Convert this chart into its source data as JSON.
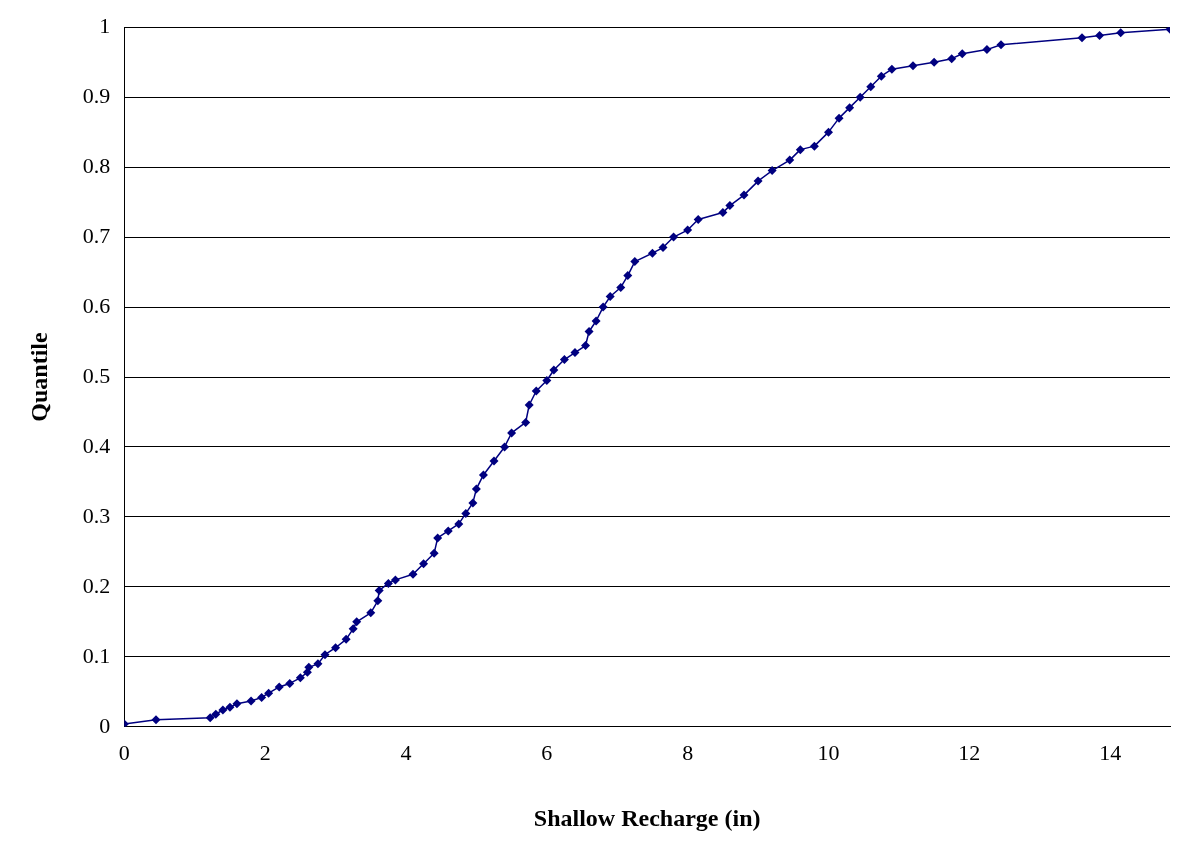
{
  "chart_data": {
    "type": "line",
    "xlabel": "Shallow Recharge (in)",
    "ylabel": "Quantile",
    "xlim": [
      0,
      14.85
    ],
    "xticks": [
      0,
      2,
      4,
      6,
      8,
      10,
      12,
      14
    ],
    "ylim": [
      0,
      1
    ],
    "yticks": [
      0,
      0.1,
      0.2,
      0.3,
      0.4,
      0.5,
      0.6,
      0.7,
      0.8,
      0.9,
      1
    ],
    "grid": "y",
    "legend": false,
    "marker": "diamond",
    "line_style": "solid",
    "x": [
      0,
      0.45,
      1.22,
      1.3,
      1.4,
      1.5,
      1.6,
      1.8,
      1.95,
      2.05,
      2.2,
      2.35,
      2.5,
      2.6,
      2.62,
      2.75,
      2.85,
      3.0,
      3.15,
      3.25,
      3.3,
      3.5,
      3.6,
      3.62,
      3.75,
      3.85,
      4.1,
      4.25,
      4.4,
      4.45,
      4.6,
      4.75,
      4.85,
      4.95,
      5.0,
      5.1,
      5.25,
      5.4,
      5.5,
      5.7,
      5.75,
      5.85,
      6.0,
      6.1,
      6.25,
      6.4,
      6.55,
      6.6,
      6.7,
      6.8,
      6.9,
      7.05,
      7.15,
      7.25,
      7.5,
      7.65,
      7.8,
      8.0,
      8.15,
      8.5,
      8.6,
      8.8,
      9.0,
      9.2,
      9.45,
      9.6,
      9.8,
      10.0,
      10.15,
      10.3,
      10.45,
      10.6,
      10.75,
      10.9,
      11.2,
      11.5,
      11.75,
      11.9,
      12.25,
      12.45,
      13.6,
      13.85,
      14.15,
      14.85
    ],
    "series": [
      {
        "color": "#000080",
        "values": [
          0.004,
          0.01,
          0.013,
          0.018,
          0.024,
          0.028,
          0.033,
          0.037,
          0.042,
          0.048,
          0.057,
          0.062,
          0.07,
          0.078,
          0.085,
          0.09,
          0.103,
          0.113,
          0.125,
          0.14,
          0.15,
          0.163,
          0.18,
          0.195,
          0.205,
          0.21,
          0.218,
          0.233,
          0.248,
          0.27,
          0.28,
          0.29,
          0.305,
          0.32,
          0.34,
          0.36,
          0.38,
          0.4,
          0.42,
          0.435,
          0.46,
          0.48,
          0.495,
          0.51,
          0.525,
          0.535,
          0.545,
          0.565,
          0.58,
          0.6,
          0.615,
          0.628,
          0.645,
          0.665,
          0.677,
          0.685,
          0.7,
          0.71,
          0.725,
          0.735,
          0.745,
          0.76,
          0.78,
          0.795,
          0.81,
          0.825,
          0.83,
          0.85,
          0.87,
          0.885,
          0.9,
          0.915,
          0.93,
          0.94,
          0.945,
          0.95,
          0.955,
          0.962,
          0.968,
          0.975,
          0.985,
          0.988,
          0.992,
          0.997
        ]
      }
    ]
  }
}
